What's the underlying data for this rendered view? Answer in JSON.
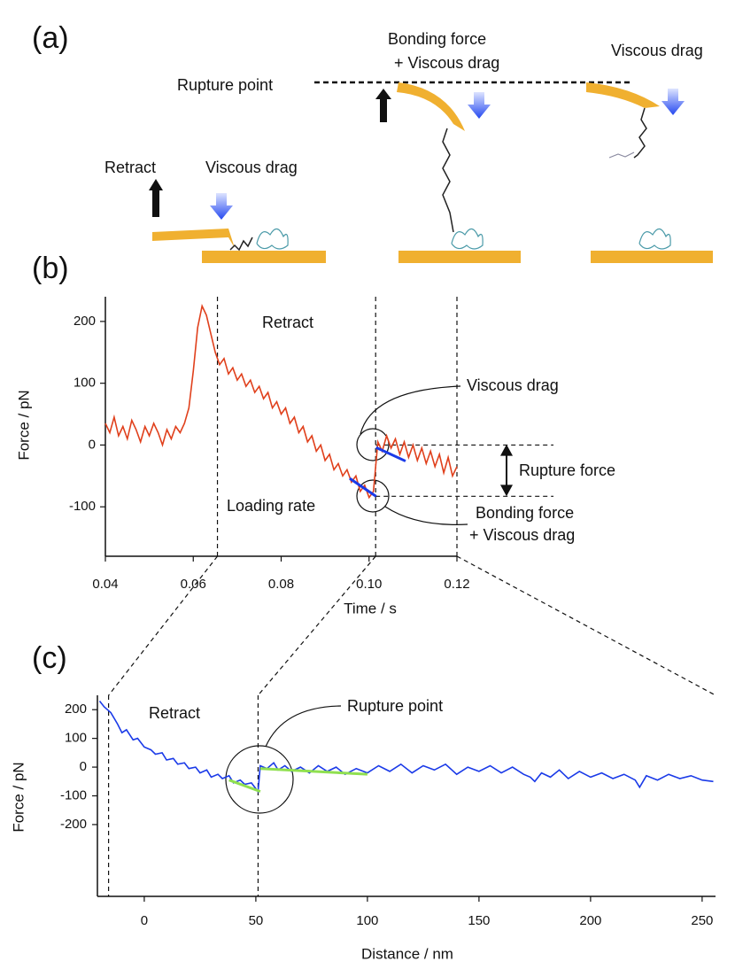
{
  "panel_labels": [
    "(a)",
    "(b)",
    "(c)"
  ],
  "diagram": {
    "rupture_point": "Rupture point",
    "bonding_force": "Bonding force",
    "plus_viscous_drag": "+ Viscous drag",
    "viscous_drag_right": "Viscous drag",
    "retract": "Retract",
    "viscous_drag_left": "Viscous drag"
  },
  "chart_data": [
    {
      "type": "line",
      "xlabel": "Time / s",
      "ylabel": "Force / pN",
      "xlim": [
        0.04,
        0.12
      ],
      "ylim": [
        -180,
        240
      ],
      "xticks": [
        0.04,
        0.06,
        0.08,
        {
          "value": 0.1,
          "label": "0.10"
        },
        0.12
      ],
      "yticks": [
        -100,
        0,
        100,
        200
      ],
      "x": [
        0.04,
        0.041,
        0.042,
        0.043,
        0.044,
        0.045,
        0.046,
        0.047,
        0.048,
        0.049,
        0.05,
        0.051,
        0.052,
        0.053,
        0.054,
        0.055,
        0.056,
        0.057,
        0.058,
        0.059,
        0.06,
        0.061,
        0.062,
        0.063,
        0.064,
        0.065,
        0.066,
        0.067,
        0.068,
        0.069,
        0.07,
        0.071,
        0.072,
        0.073,
        0.074,
        0.075,
        0.076,
        0.077,
        0.078,
        0.079,
        0.08,
        0.081,
        0.082,
        0.083,
        0.084,
        0.085,
        0.086,
        0.087,
        0.088,
        0.089,
        0.09,
        0.091,
        0.092,
        0.093,
        0.094,
        0.095,
        0.096,
        0.097,
        0.098,
        0.099,
        0.1,
        0.101,
        0.102,
        0.103,
        0.104,
        0.105,
        0.106,
        0.107,
        0.108,
        0.109,
        0.11,
        0.111,
        0.112,
        0.113,
        0.114,
        0.115,
        0.116,
        0.117,
        0.118,
        0.119,
        0.12
      ],
      "series": [
        {
          "color": "#e0401c",
          "values": [
            35,
            20,
            45,
            15,
            30,
            10,
            40,
            25,
            5,
            30,
            15,
            35,
            20,
            0,
            25,
            10,
            30,
            20,
            35,
            60,
            120,
            190,
            225,
            210,
            180,
            150,
            130,
            140,
            115,
            125,
            105,
            115,
            95,
            105,
            85,
            95,
            75,
            85,
            60,
            70,
            50,
            60,
            35,
            45,
            20,
            30,
            5,
            15,
            -10,
            0,
            -25,
            -15,
            -40,
            -30,
            -50,
            -40,
            -60,
            -50,
            -75,
            -65,
            -85,
            -75,
            5,
            -10,
            15,
            -5,
            10,
            -15,
            5,
            -20,
            0,
            -25,
            -5,
            -30,
            -10,
            -35,
            -15,
            -45,
            -20,
            -50,
            -35
          ]
        }
      ],
      "fit_color": "#1a3ae8",
      "fits": [
        {
          "x": [
            0.0956,
            0.1016
          ],
          "values": [
            -54,
            -83
          ]
        },
        {
          "x": [
            0.1016,
            0.1083
          ],
          "values": [
            -4,
            -26
          ]
        }
      ],
      "marker_x": [
        0.0655,
        0.1015,
        0.12
      ],
      "rupture_levels": [
        0,
        -83
      ],
      "annotations": [
        "Retract",
        "Viscous drag",
        "Rupture force",
        "Loading rate",
        "Bonding force",
        "+ Viscous drag"
      ]
    },
    {
      "type": "line",
      "xlabel": "Distance / nm",
      "ylabel": "Force / pN",
      "xlim": [
        -21,
        256
      ],
      "ylim": [
        -450,
        250
      ],
      "xticks": [
        0,
        50,
        100,
        150,
        200,
        250
      ],
      "yticks": [
        -200,
        -100,
        0,
        100,
        200
      ],
      "x": [
        -20,
        -18,
        -15,
        -12,
        -10,
        -8,
        -5,
        -3,
        0,
        3,
        5,
        8,
        10,
        13,
        15,
        18,
        20,
        23,
        25,
        28,
        30,
        33,
        35,
        38,
        40,
        43,
        45,
        48,
        50,
        51,
        52,
        55,
        58,
        60,
        63,
        66,
        70,
        74,
        78,
        82,
        86,
        90,
        95,
        100,
        105,
        110,
        115,
        120,
        125,
        130,
        135,
        140,
        145,
        150,
        155,
        160,
        165,
        170,
        173,
        175,
        178,
        182,
        186,
        190,
        195,
        200,
        205,
        210,
        215,
        220,
        222,
        225,
        230,
        235,
        240,
        245,
        250,
        255
      ],
      "series": [
        {
          "color": "#1a3ae8",
          "values": [
            230,
            210,
            190,
            150,
            120,
            130,
            95,
            100,
            70,
            60,
            45,
            50,
            25,
            30,
            10,
            15,
            -5,
            0,
            -20,
            -10,
            -35,
            -25,
            -40,
            -30,
            -55,
            -45,
            -60,
            -55,
            -75,
            -85,
            5,
            -5,
            15,
            -10,
            5,
            -15,
            0,
            -20,
            5,
            -15,
            0,
            -25,
            -5,
            -20,
            5,
            -15,
            10,
            -20,
            5,
            -10,
            10,
            -25,
            0,
            -15,
            5,
            -20,
            0,
            -25,
            -35,
            -50,
            -20,
            -35,
            -10,
            -40,
            -15,
            -35,
            -20,
            -40,
            -25,
            -45,
            -70,
            -30,
            -45,
            -25,
            -40,
            -30,
            -45,
            -50
          ]
        }
      ],
      "fit_color": "#90e050",
      "fits": [
        {
          "x": [
            38,
            52
          ],
          "values": [
            -45,
            -85
          ]
        },
        {
          "x": [
            52,
            100
          ],
          "values": [
            -5,
            -25
          ]
        }
      ],
      "marker_x": [
        -16,
        51
      ],
      "annotations": [
        "Retract",
        "Rupture point"
      ]
    }
  ]
}
